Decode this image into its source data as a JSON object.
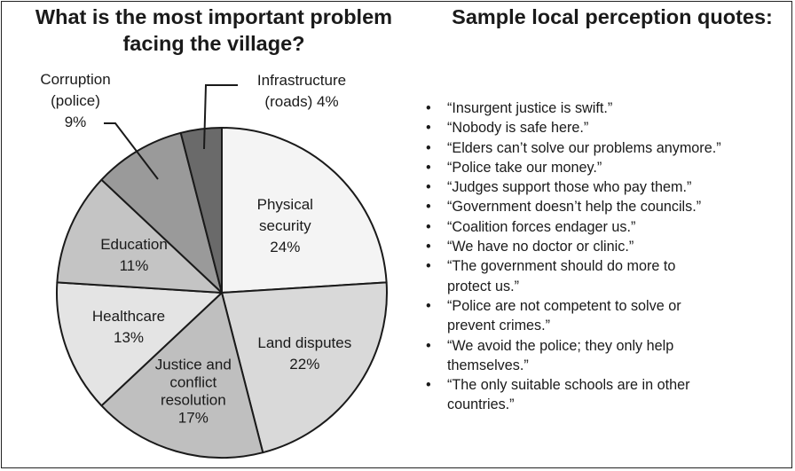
{
  "chart_title_line1": "What is the most important problem",
  "chart_title_line2": "facing the village?",
  "quotes_title": "Sample local perception quotes:",
  "chart_data": {
    "type": "pie",
    "title": "What is the most important problem facing the village?",
    "slices": [
      {
        "label": "Physical security",
        "value": 24,
        "value_label": "24%",
        "label_lines": [
          "Physical",
          "security",
          "24%"
        ],
        "color": "#f4f4f4"
      },
      {
        "label": "Land disputes",
        "value": 22,
        "value_label": "22%",
        "label_lines": [
          "Land disputes",
          "22%"
        ],
        "color": "#d9d9d9"
      },
      {
        "label": "Justice and conflict resolution",
        "value": 17,
        "value_label": "17%",
        "label_lines": [
          "Justice and",
          "conflict",
          "resolution",
          "17%"
        ],
        "color": "#bfbfbf"
      },
      {
        "label": "Healthcare",
        "value": 13,
        "value_label": "13%",
        "label_lines": [
          "Healthcare",
          "13%"
        ],
        "color": "#e4e4e4"
      },
      {
        "label": "Education",
        "value": 11,
        "value_label": "11%",
        "label_lines": [
          "Education",
          "11%"
        ],
        "color": "#c4c4c4"
      },
      {
        "label": "Corruption (police)",
        "value": 9,
        "value_label": "9%",
        "label_lines": [
          "Corruption",
          "(police)",
          "9%"
        ],
        "color": "#9a9a9a"
      },
      {
        "label": "Infrastructure (roads)",
        "value": 4,
        "value_label": "4%",
        "label_lines": [
          "Infrastructure",
          "(roads) 4%"
        ],
        "color": "#6a6a6a"
      }
    ]
  },
  "quotes": [
    [
      "“Insurgent justice is swift.”"
    ],
    [
      "“Nobody is safe here.”"
    ],
    [
      "“Elders can’t solve our problems anymore.”"
    ],
    [
      "“Police take our money.”"
    ],
    [
      "“Judges support those who pay them.”"
    ],
    [
      "“Government doesn’t help the councils.”"
    ],
    [
      "“Coalition forces endager us.”"
    ],
    [
      "“We have no doctor or clinic.”"
    ],
    [
      "“The government should do more to",
      "protect us.”"
    ],
    [
      "“Police are not competent to solve or",
      "prevent crimes.”"
    ],
    [
      "“We avoid the police; they only help",
      "themselves.”"
    ],
    [
      "“The only suitable schools are in other",
      "countries.”"
    ]
  ]
}
